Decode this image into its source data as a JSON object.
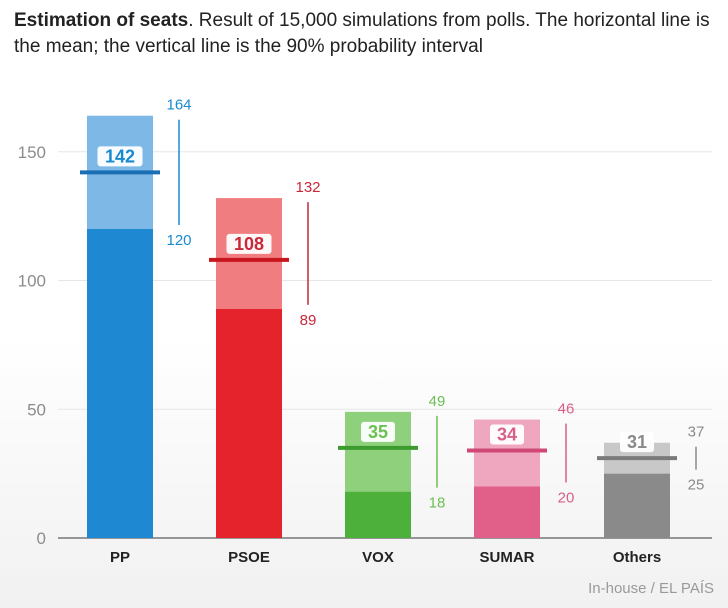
{
  "title": {
    "bold": "Estimation of seats",
    "rest": ". Result of 15,000 simulations from polls. The horizontal line is the mean; the vertical line is the 90% probability interval"
  },
  "source": "In-house / EL PAÍS",
  "chart_data": {
    "type": "bar",
    "categories": [
      "PP",
      "PSOE",
      "VOX",
      "SUMAR",
      "Others"
    ],
    "series": [
      {
        "name": "mean",
        "values": [
          142,
          108,
          35,
          34,
          31
        ]
      },
      {
        "name": "low",
        "values": [
          120,
          89,
          18,
          20,
          25
        ]
      },
      {
        "name": "high",
        "values": [
          164,
          132,
          49,
          46,
          37
        ]
      }
    ],
    "colors": {
      "PP": {
        "dark": "#1e88d2",
        "light": "#7db8e6",
        "line": "#1a6fb5",
        "label": "#1a8ad0"
      },
      "PSOE": {
        "dark": "#e4232c",
        "light": "#f07d7f",
        "line": "#c8161f",
        "label": "#c8283a"
      },
      "VOX": {
        "dark": "#4cb03a",
        "light": "#8ed07c",
        "line": "#3c9a2e",
        "label": "#6cbf52"
      },
      "SUMAR": {
        "dark": "#e0608a",
        "light": "#efa6bf",
        "line": "#cf4876",
        "label": "#d86088"
      },
      "Others": {
        "dark": "#8a8a8a",
        "light": "#c8c8c8",
        "line": "#7a7a7a",
        "label": "#8a8a8a"
      }
    },
    "ylim": [
      0,
      170
    ],
    "yticks": [
      0,
      50,
      100,
      150
    ],
    "xlabel": "",
    "ylabel": "",
    "grid": true
  }
}
